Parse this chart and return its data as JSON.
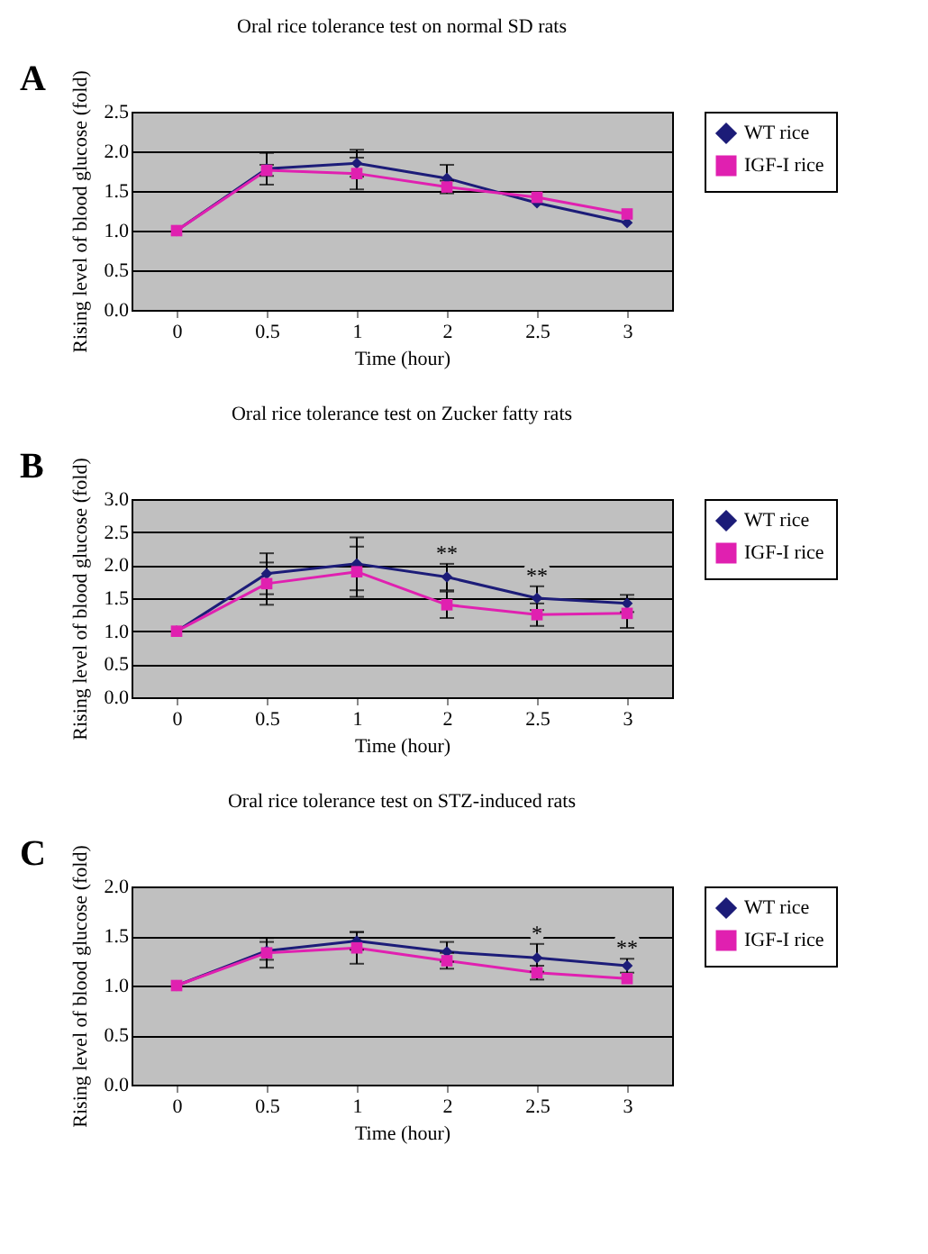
{
  "chart_data": [
    {
      "type": "line",
      "title": "Oral rice tolerance test on normal SD rats",
      "xlabel": "Time (hour)",
      "ylabel": "Rising level of blood glucose (fold)",
      "categories": [
        "0",
        "0.5",
        "1",
        "2",
        "2.5",
        "3"
      ],
      "ylim": [
        0,
        2.5
      ],
      "yticks": [
        {
          "value": 0,
          "label": "0.0"
        },
        0.5,
        {
          "value": 1,
          "label": "1.0"
        },
        1.5,
        {
          "value": 2,
          "label": "2.0"
        },
        2.5
      ],
      "grid": "y",
      "legend": "right",
      "annotations": [
        "A"
      ],
      "series": [
        {
          "name": "WT rice",
          "color": "#1c1c78",
          "marker": "diamond",
          "values": [
            1.0,
            1.78,
            1.85,
            1.66,
            1.35,
            1.1
          ],
          "errors": [
            null,
            0.2,
            0.17,
            0.17,
            null,
            null
          ]
        },
        {
          "name": "IGF-I rice",
          "color": "#e020b0",
          "marker": "square",
          "values": [
            1.0,
            1.76,
            1.72,
            1.55,
            1.42,
            1.21
          ],
          "errors": [
            null,
            0.07,
            0.2,
            0.08,
            null,
            null
          ]
        }
      ]
    },
    {
      "type": "line",
      "title": "Oral rice tolerance test on Zucker fatty rats",
      "xlabel": "Time (hour)",
      "ylabel": "Rising level of blood glucose (fold)",
      "categories": [
        "0",
        "0.5",
        "1",
        "2",
        "2.5",
        "3"
      ],
      "ylim": [
        0,
        3.0
      ],
      "yticks": [
        {
          "value": 0,
          "label": "0.0"
        },
        0.5,
        {
          "value": 1,
          "label": "1.0"
        },
        1.5,
        {
          "value": 2,
          "label": "2.0"
        },
        2.5,
        {
          "value": 3,
          "label": "3.0"
        }
      ],
      "grid": "y",
      "legend": "right",
      "annotations": [
        "B",
        "**",
        "**"
      ],
      "series": [
        {
          "name": "WT rice",
          "color": "#1c1c78",
          "marker": "diamond",
          "values": [
            1.0,
            1.87,
            2.02,
            1.82,
            1.5,
            1.42
          ],
          "errors": [
            null,
            0.31,
            0.4,
            0.2,
            0.18,
            0.13
          ]
        },
        {
          "name": "IGF-I rice",
          "color": "#e020b0",
          "marker": "square",
          "values": [
            1.0,
            1.72,
            1.9,
            1.4,
            1.25,
            1.27
          ],
          "errors": [
            null,
            0.32,
            0.38,
            0.2,
            0.17,
            0.22
          ]
        }
      ]
    },
    {
      "type": "line",
      "title": "Oral rice tolerance test on STZ-induced rats",
      "xlabel": "Time (hour)",
      "ylabel": "Rising level of blood glucose (fold)",
      "categories": [
        "0",
        "0.5",
        "1",
        "2",
        "2.5",
        "3"
      ],
      "ylim": [
        0,
        2.0
      ],
      "yticks": [
        {
          "value": 0,
          "label": "0.0"
        },
        0.5,
        {
          "value": 1,
          "label": "1.0"
        },
        1.5,
        {
          "value": 2,
          "label": "2.0"
        }
      ],
      "grid": "y",
      "legend": "right",
      "annotations": [
        "C",
        "*",
        "**"
      ],
      "series": [
        {
          "name": "WT rice",
          "color": "#1c1c78",
          "marker": "diamond",
          "values": [
            1.0,
            1.35,
            1.45,
            1.34,
            1.28,
            1.2
          ],
          "errors": [
            null,
            0.09,
            0.09,
            0.1,
            0.14,
            0.07
          ]
        },
        {
          "name": "IGF-I rice",
          "color": "#e020b0",
          "marker": "square",
          "values": [
            1.0,
            1.33,
            1.38,
            1.25,
            1.13,
            1.07
          ],
          "errors": [
            null,
            0.15,
            0.16,
            0.08,
            0.07,
            null
          ]
        }
      ]
    }
  ]
}
